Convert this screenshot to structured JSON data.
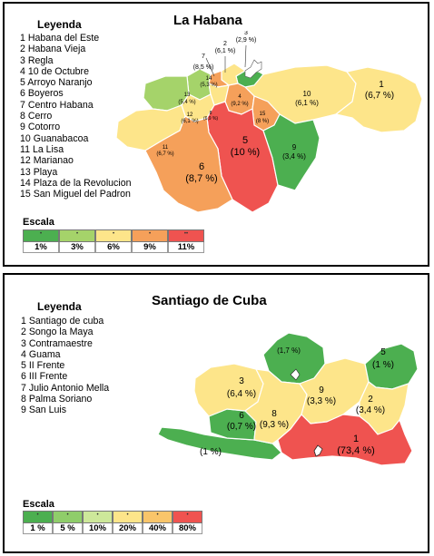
{
  "habana": {
    "title": "La Habana",
    "legend_title": "Leyenda",
    "legend_items": [
      "1 Habana del Este",
      "2 Habana Vieja",
      "3 Regla",
      "4 10 de Octubre",
      "5 Arroyo Naranjo",
      "6 Boyeros",
      "7 Centro Habana",
      "8 Cerro",
      "9 Cotorro",
      "10 Guanabacoa",
      "11 La Lisa",
      "12 Marianao",
      "13 Playa",
      "14 Plaza de la Revolucion",
      "15 San Miguel del Padron"
    ],
    "scale_title": "Escala",
    "scale": [
      {
        "label": "1%",
        "color": "#4caf50"
      },
      {
        "label": "3%",
        "color": "#a5d36a"
      },
      {
        "label": "6%",
        "color": "#fde58a"
      },
      {
        "label": "9%",
        "color": "#f5a05a"
      },
      {
        "label": "11%",
        "color": "#ef5350"
      }
    ],
    "map_labels": {
      "m1": [
        "1",
        "(6,7 %)"
      ],
      "m2": [
        "2",
        "(6,1 %)"
      ],
      "m3": [
        "3",
        "(2,9 %)"
      ],
      "m4": [
        "4",
        "(9,2 %)"
      ],
      "m5": [
        "5",
        "(10 %)"
      ],
      "m6": [
        "6",
        "(8,7 %)"
      ],
      "m7": [
        "7",
        "(8,5 %)"
      ],
      "m8": [
        "8",
        "(6,9 %)"
      ],
      "m9": [
        "9",
        "(3,4 %)"
      ],
      "m10": [
        "10",
        "(6,1 %)"
      ],
      "m11": [
        "11",
        "(6,7 %)"
      ],
      "m12": [
        "12",
        "(6,1 %)"
      ],
      "m13": [
        "13",
        "(5,4 %)"
      ],
      "m14": [
        "14",
        "(5,3 %)"
      ],
      "m15": [
        "15",
        "(8 %)"
      ]
    }
  },
  "santiago": {
    "title": "Santiago de Cuba",
    "legend_title": "Leyenda",
    "legend_items": [
      "1 Santiago de cuba",
      "2 Songo la Maya",
      "3 Contramaestre",
      "4 Guama",
      "5 II Frente",
      "6 III Frente",
      "7 Julio Antonio Mella",
      "8 Palma Soriano",
      "9 San Luis"
    ],
    "scale_title": "Escala",
    "scale": [
      {
        "label": "1 %",
        "color": "#4caf50"
      },
      {
        "label": "5 %",
        "color": "#8fcd6a"
      },
      {
        "label": "10%",
        "color": "#cde89a"
      },
      {
        "label": "20%",
        "color": "#fde58a"
      },
      {
        "label": "40%",
        "color": "#f9c56a"
      },
      {
        "label": "80%",
        "color": "#ef5350"
      }
    ],
    "map_labels": {
      "m1": [
        "1",
        "(73,4 %)"
      ],
      "m2": [
        "2",
        "(3,4 %)"
      ],
      "m3": [
        "3",
        "(6,4 %)"
      ],
      "m4": [
        "(1 %)"
      ],
      "m5": [
        "5",
        "(1 %)"
      ],
      "m6": [
        "6",
        "(0,7 %)"
      ],
      "m7": [
        "(1,7 %)"
      ],
      "m8": [
        "8",
        "(9,3 %)"
      ],
      "m9": [
        "9",
        "(3,3 %)"
      ]
    }
  }
}
